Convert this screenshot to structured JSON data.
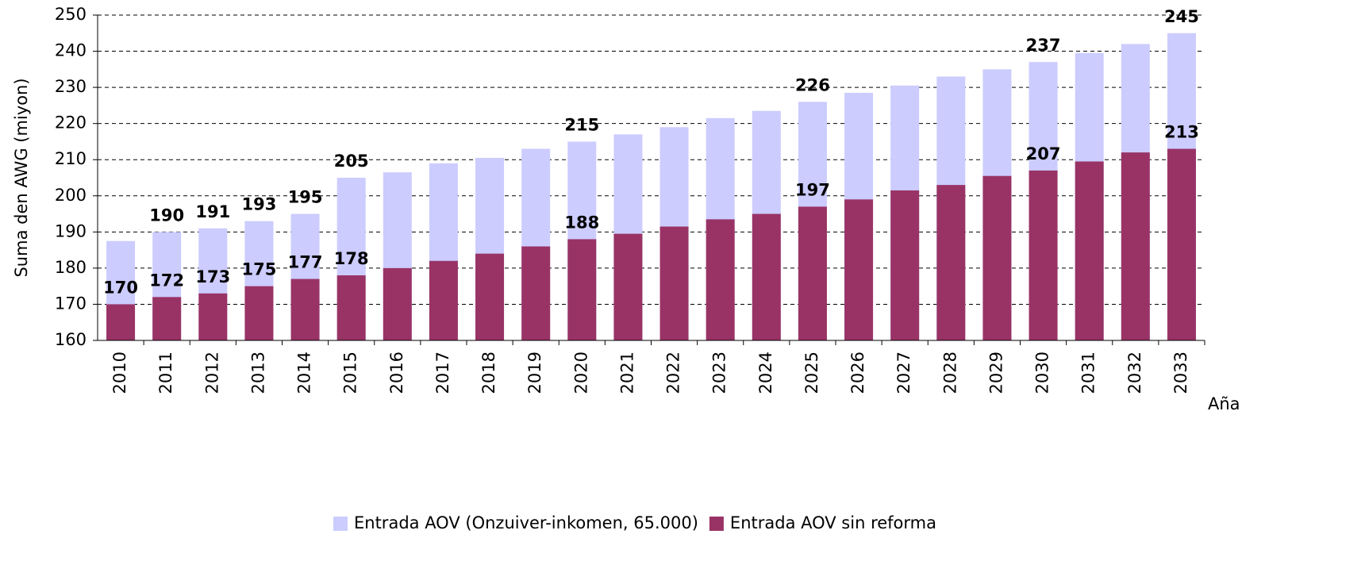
{
  "chart_data": {
    "type": "bar",
    "barmode": "overlay",
    "y_label": "Suma den AWG (miyon)",
    "x_label": "Aña",
    "categories": [
      "2010",
      "2011",
      "2012",
      "2013",
      "2014",
      "2015",
      "2016",
      "2017",
      "2018",
      "2019",
      "2020",
      "2021",
      "2022",
      "2023",
      "2024",
      "2025",
      "2026",
      "2027",
      "2028",
      "2029",
      "2030",
      "2031",
      "2032",
      "2033"
    ],
    "series": [
      {
        "name": "Entrada AOV (Onzuiver-inkomen, 65.000)",
        "color": "#ccccff",
        "values": [
          187.5,
          190,
          191,
          193,
          195,
          205,
          206.5,
          209,
          210.5,
          213,
          215,
          217,
          219,
          221.5,
          223.5,
          226,
          228.5,
          230.5,
          233,
          235,
          237,
          239.5,
          242,
          245
        ],
        "value_labels": [
          null,
          "190",
          "191",
          "193",
          "195",
          "205",
          null,
          null,
          null,
          null,
          "215",
          null,
          null,
          null,
          null,
          "226",
          null,
          null,
          null,
          null,
          "237",
          null,
          null,
          "245"
        ]
      },
      {
        "name": "Entrada AOV sin reforma",
        "color": "#993366",
        "values": [
          170,
          172,
          173,
          175,
          177,
          178,
          180,
          182,
          184,
          186,
          188,
          189.5,
          191.5,
          193.5,
          195,
          197,
          199,
          201.5,
          203,
          205.5,
          207,
          209.5,
          212,
          213
        ],
        "value_labels": [
          "170",
          "172",
          "173",
          "175",
          "177",
          "178",
          null,
          null,
          null,
          null,
          "188",
          null,
          null,
          null,
          null,
          "197",
          null,
          null,
          null,
          null,
          "207",
          null,
          null,
          "213"
        ]
      }
    ],
    "ylim": [
      160,
      250
    ],
    "yticks": [
      160,
      170,
      180,
      190,
      200,
      210,
      220,
      230,
      240,
      250
    ],
    "grid": true,
    "legend": "bottom"
  }
}
